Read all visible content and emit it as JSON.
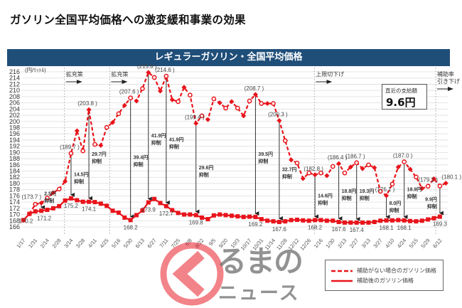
{
  "title": "ガソリン全国平均価格への激変緩和事業の効果",
  "chart_data": {
    "type": "line",
    "title": "レギュラーガソリン・全国平均価格",
    "ylabel": "(円/ﾘｯﾄﾙ)",
    "ylim": [
      166,
      216
    ],
    "ytick_step": 2,
    "grid": true,
    "legend_placement": "bottom-right",
    "x_tick_labels": [
      "1/17",
      "1/31",
      "2/14",
      "2/28",
      "3/14",
      "3/28",
      "4/11",
      "4/25",
      "5/16",
      "5/30",
      "6/13",
      "6/27",
      "7/11",
      "7/25",
      "8/8",
      "8/22",
      "9/5",
      "9/20",
      "10/3",
      "10/17",
      "10/31",
      "11/14",
      "11/28",
      "12/12",
      "12/26",
      "1/16",
      "1/30",
      "2/13",
      "2/27",
      "3/13",
      "3/27",
      "4/10",
      "4/24",
      "5/15",
      "5/29",
      "6/12"
    ],
    "series": [
      {
        "name": "補助がない場合のガソリン価格",
        "style": "dashed",
        "color": "#e8141b",
        "start_week": 1,
        "values": [
          170.2,
          173.3,
          173.7,
          175.3,
          177.0,
          178.2,
          180.7,
          189.7,
          197.0,
          190.5,
          203.8,
          192.6,
          192.3,
          198.1,
          199.7,
          202.5,
          205.2,
          207.6,
          206.6,
          210.6,
          215.8,
          214.2,
          209.8,
          214.6,
          207.0,
          206.4,
          211.0,
          208.5,
          199.4,
          201.8,
          200.6,
          207.3,
          206.0,
          204.3,
          206.4,
          204.3,
          201.8,
          206.6,
          208.7,
          205.8,
          205.8,
          205.8,
          200.3,
          193.8,
          187.6,
          186.6,
          181.6,
          183.4,
          182.8,
          183.4,
          182.5,
          185.5,
          186.4,
          183.4,
          185.3,
          186.7,
          184.8,
          186.0,
          185.1,
          177.5,
          176.1,
          179.8,
          185.3,
          187.0,
          184.6,
          182.1,
          178.4,
          179.1,
          181.5,
          179.2,
          180.1
        ]
      },
      {
        "name": "補助後のガソリン価格",
        "style": "solid",
        "color": "#e8141b",
        "start_week": 0,
        "values": [
          168.2,
          170.2,
          171.0,
          171.2,
          171.5,
          172.0,
          172.7,
          174.5,
          175.2,
          174.6,
          174.1,
          174.1,
          174.0,
          173.5,
          172.8,
          171.2,
          170.6,
          169.0,
          168.2,
          169.8,
          171.3,
          173.9,
          175.0,
          173.7,
          172.7,
          171.4,
          170.5,
          170.0,
          170.0,
          169.8,
          169.0,
          168.5,
          169.7,
          170.0,
          169.8,
          169.6,
          169.4,
          169.2,
          169.3,
          169.2,
          168.5,
          168.0,
          167.8,
          167.6,
          167.8,
          168.2,
          168.3,
          168.1,
          168.0,
          168.2,
          168.2,
          168.0,
          168.0,
          167.6,
          167.4,
          167.4,
          167.4,
          167.4,
          167.4,
          167.6,
          168.0,
          168.1,
          168.1,
          168.2,
          168.1,
          167.9,
          167.8,
          168.0,
          168.4,
          168.8,
          169.3
        ]
      }
    ],
    "subsidy_annotations": [
      {
        "week": 3,
        "before": "(173.7 )",
        "after": "171.2",
        "amount": "2.5円",
        "note": "抑制"
      },
      {
        "week": 8,
        "before": "(189.7 )",
        "after": "175.2",
        "amount": "14.5円",
        "note": "抑制"
      },
      {
        "week": 11,
        "before": "(203.8 )",
        "after": "174.1",
        "amount": "29.7円",
        "note": "抑制"
      },
      {
        "week": 18,
        "before": "(207.6 )",
        "after": "168.2",
        "amount": "39.4円",
        "note": "抑制"
      },
      {
        "week": 21,
        "before": "(215.8 )",
        "after": "173.9",
        "amount": "41.9円",
        "note": "抑制"
      },
      {
        "week": 24,
        "before": "(214.6 )",
        "after": "172.7",
        "amount": "41.9円",
        "note": "抑制"
      },
      {
        "week": 29,
        "before": "(199.4 )",
        "after": "169.8",
        "amount": "29.6円",
        "note": "抑制"
      },
      {
        "week": 39,
        "before": "(208.7 )",
        "after": "169.2",
        "amount": "39.5円",
        "note": "抑制"
      },
      {
        "week": 43,
        "before": "(200.3 )",
        "after": "167.6",
        "amount": "32.7円",
        "note": "抑制"
      },
      {
        "week": 49,
        "before": "(182.8 )",
        "after": "168.2",
        "amount": "14.6円",
        "note": "抑制"
      },
      {
        "week": 53,
        "before": "(186.4 )",
        "after": "167.6",
        "amount": "18.8円",
        "note": "抑制"
      },
      {
        "week": 56,
        "before": "(186.7 )",
        "after": "167.4",
        "amount": "19.3円",
        "note": "抑制"
      },
      {
        "week": 61,
        "before": "(176.1 )",
        "after": "168.1",
        "amount": "8.0円",
        "note": "抑制"
      },
      {
        "week": 64,
        "before": "(187.0 )",
        "after": "168.1",
        "amount": "18.9円",
        "note": "抑制"
      },
      {
        "week": 70,
        "before": "(179.2 )",
        "after": "169.3",
        "amount": "9.9円",
        "note": "抑制"
      }
    ],
    "extra_labels": [
      {
        "week": 1,
        "series": "solid",
        "text": "170.2"
      },
      {
        "week": 71,
        "series": "dashed",
        "text": "(180.1 )"
      }
    ],
    "events": [
      {
        "week": 6.9,
        "label": "拡充策"
      },
      {
        "week": 14.5,
        "label": "拡充策"
      },
      {
        "week": 48.9,
        "label": "上限切下げ"
      },
      {
        "week": 69.3,
        "label": "補助率\n引き下げ"
      }
    ]
  },
  "info_box": {
    "label": "直近の支給額",
    "value": "9.6円"
  },
  "legend": {
    "dashed": "補助がない場合のガソリン価格",
    "solid": "補助後のガソリン価格"
  },
  "logo": {
    "line1": "るまの",
    "line2": "ニュース"
  }
}
